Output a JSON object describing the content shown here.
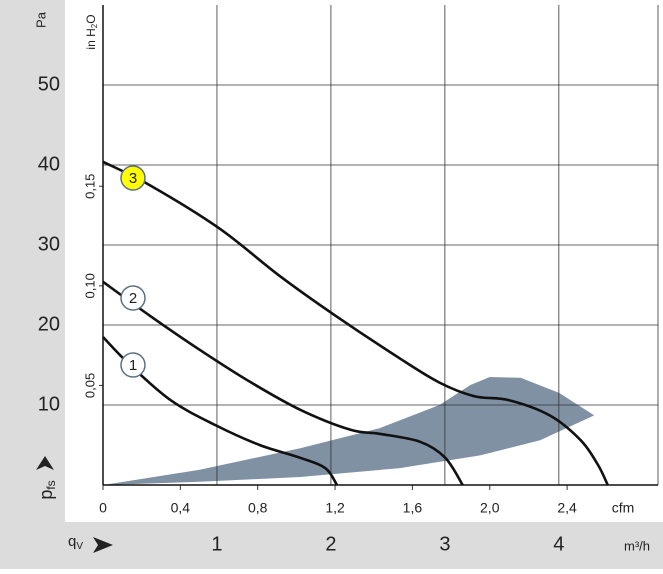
{
  "chart_data": {
    "type": "line",
    "y_label": "Pa",
    "y2_label": "in H",
    "y2_label_sub": "2",
    "y2_label_tail": "O",
    "y_name": "p",
    "y_name_sub": "fs",
    "x_unit": "cfm",
    "x2_name": "q",
    "x2_name_sub": "V",
    "x2_unit": "m³/h",
    "ylim": [
      0,
      60
    ],
    "yticks": [
      10,
      20,
      30,
      40,
      50
    ],
    "y2lim": [
      0,
      0.241
    ],
    "y2ticks": [
      {
        "value": 0.05,
        "label": "0,05"
      },
      {
        "value": 0.1,
        "label": "0,10"
      },
      {
        "value": 0.15,
        "label": "0,15"
      }
    ],
    "xlim": [
      0,
      2.87
    ],
    "xticks": [
      0,
      {
        "value": 0.4,
        "label": "0,4"
      },
      {
        "value": 0.8,
        "label": "0,8"
      },
      {
        "value": 1.2,
        "label": "1,2"
      },
      {
        "value": 1.6,
        "label": "1,6"
      },
      {
        "value": 2.0,
        "label": "2,0"
      },
      {
        "value": 2.4,
        "label": "2,4"
      }
    ],
    "x2lim": [
      0,
      4.87
    ],
    "x2ticks": [
      1,
      2,
      3,
      4
    ],
    "grid": true,
    "series": [
      {
        "name": "1",
        "color": "#111111",
        "badge_color": "#ffffff",
        "x": [
          0,
          0.14,
          0.35,
          0.58,
          0.81,
          1.02,
          1.15,
          1.21
        ],
        "values": [
          18.5,
          15,
          10.6,
          7.5,
          5,
          3.4,
          2.1,
          0
        ]
      },
      {
        "name": "2",
        "color": "#111111",
        "badge_color": "#ffffff",
        "x": [
          0,
          0.24,
          0.5,
          0.76,
          1.02,
          1.28,
          1.43,
          1.64,
          1.77,
          1.86
        ],
        "values": [
          25.4,
          21.2,
          16.9,
          12.9,
          9.4,
          6.9,
          6.4,
          5.4,
          3.4,
          0
        ]
      },
      {
        "name": "3",
        "color": "#111111",
        "badge_color": "#ffff00",
        "x": [
          0,
          0.24,
          0.6,
          0.91,
          1.2,
          1.53,
          1.74,
          1.92,
          2.1,
          2.31,
          2.47,
          2.56,
          2.61
        ],
        "values": [
          40.4,
          37.5,
          32.1,
          26.2,
          21.2,
          15.9,
          12.8,
          11.1,
          10.6,
          8.7,
          5.6,
          2.5,
          0
        ]
      }
    ],
    "area": {
      "color": "#7f91a3",
      "x": [
        0,
        0.5,
        1.02,
        1.43,
        1.74,
        1.9,
        2.0,
        2.16,
        2.36,
        2.54,
        2.26,
        1.95,
        1.53,
        1.02,
        0.5
      ],
      "values": [
        0,
        1.9,
        4.6,
        7.1,
        10,
        12.5,
        13.5,
        13.4,
        11.5,
        8.7,
        5.6,
        3.7,
        2.1,
        1,
        0.4
      ]
    }
  }
}
